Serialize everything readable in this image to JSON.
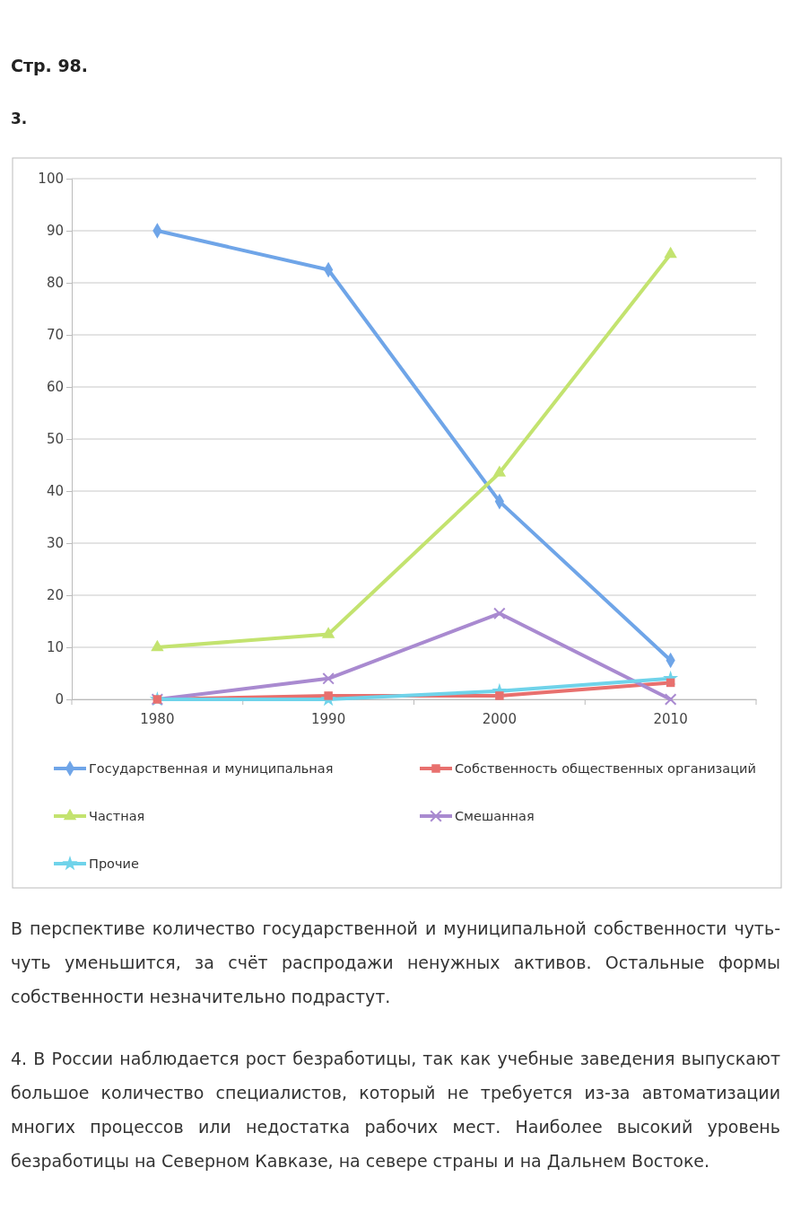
{
  "chart_data": {
    "type": "line",
    "title": "Стр. 98.",
    "subtitle": "3.",
    "categories": [
      "1980",
      "1990",
      "2000",
      "2010"
    ],
    "series": [
      {
        "name": "Государственная и муниципальная",
        "color": "#6fa5e8",
        "marker": "diamond",
        "values": [
          90,
          82.5,
          38,
          7.5
        ]
      },
      {
        "name": "Собственность общественных организаций",
        "color": "#e8706e",
        "marker": "square",
        "values": [
          0,
          0.7,
          0.7,
          3.2
        ]
      },
      {
        "name": "Частная",
        "color": "#c3e36f",
        "marker": "triangle",
        "values": [
          10,
          12.5,
          43.5,
          85.5
        ]
      },
      {
        "name": "Смешанная",
        "color": "#a98ad0",
        "marker": "cross",
        "values": [
          0,
          4,
          16.5,
          0
        ]
      },
      {
        "name": "Прочие",
        "color": "#6fd3ea",
        "marker": "star",
        "values": [
          0,
          0,
          1.6,
          4
        ]
      }
    ],
    "ylim": [
      0,
      100
    ],
    "yticks": [
      0,
      10,
      20,
      30,
      40,
      50,
      60,
      70,
      80,
      90,
      100
    ],
    "grid": "y",
    "legend": "bottom",
    "line_style": "solid",
    "annotations": [
      "В перспективе количество государственной и муниципальной собственности чуть-чуть уменьшится, за счёт распродажи ненужных активов. Остальные формы собственности незначительно подрастут.",
      "4. В России наблюдается рост безработицы, так как учебные заведения выпускают большое количество специалистов, который не требуется из-за автоматизации многих процессов или недостатка рабочих мест. Наиболее высокий уровень безработицы на Северном Кавказе, на севере страны и на Дальнем Востоке."
    ]
  }
}
